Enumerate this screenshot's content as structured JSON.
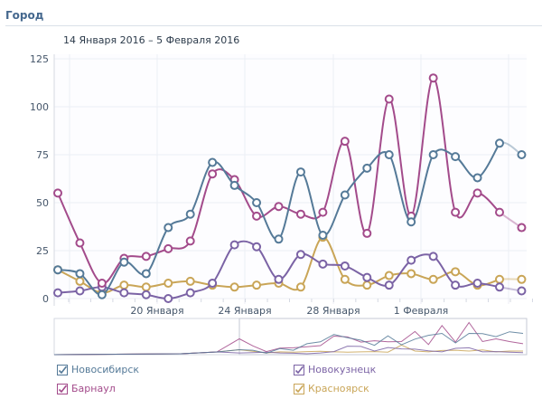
{
  "header": {
    "title": "Город",
    "date_range": "14 Января 2016 – 5 Февраля 2016"
  },
  "chart_data": {
    "type": "line",
    "title": "Город",
    "x": [
      "14 Янв",
      "15 Янв",
      "16 Янв",
      "17 Янв",
      "18 Янв",
      "19 Янв",
      "20 Янв",
      "21 Янв",
      "22 Янв",
      "23 Янв",
      "24 Янв",
      "25 Янв",
      "26 Янв",
      "27 Янв",
      "28 Янв",
      "29 Янв",
      "30 Янв",
      "31 Янв",
      "1 Фев",
      "2 Фев",
      "3 Фев",
      "4 Фев"
    ],
    "x_tick_labels": [
      "20 Января",
      "24 Января",
      "28 Января",
      "1 Февраля"
    ],
    "y_ticks": [
      "0",
      "25",
      "50",
      "75",
      "100",
      "125"
    ],
    "ylim": [
      0,
      125
    ],
    "grid": true,
    "legend_placement": "bottom",
    "series": [
      {
        "name": "Новосибирск",
        "color": "#557a98",
        "checked": true,
        "values": [
          15,
          13,
          2,
          19,
          13,
          37,
          44,
          71,
          59,
          50,
          31,
          66,
          33,
          54,
          68,
          75,
          40,
          75,
          74,
          63,
          81,
          75
        ]
      },
      {
        "name": "Барнаул",
        "color": "#a34b8b",
        "checked": true,
        "values": [
          55,
          29,
          8,
          21,
          22,
          26,
          30,
          65,
          62,
          43,
          48,
          44,
          45,
          82,
          34,
          104,
          43,
          115,
          45,
          55,
          45,
          37
        ]
      },
      {
        "name": "Новокузнецк",
        "color": "#7b63a5",
        "checked": true,
        "values": [
          3,
          4,
          6,
          3,
          2,
          0,
          3,
          8,
          28,
          27,
          10,
          23,
          18,
          17,
          11,
          7,
          20,
          22,
          7,
          8,
          6,
          4
        ]
      },
      {
        "name": "Красноярск",
        "color": "#c9a557",
        "checked": true,
        "values": [
          15,
          9,
          3,
          7,
          6,
          8,
          9,
          7,
          6,
          7,
          8,
          6,
          32,
          10,
          7,
          12,
          13,
          10,
          14,
          7,
          10,
          10
        ]
      }
    ]
  }
}
